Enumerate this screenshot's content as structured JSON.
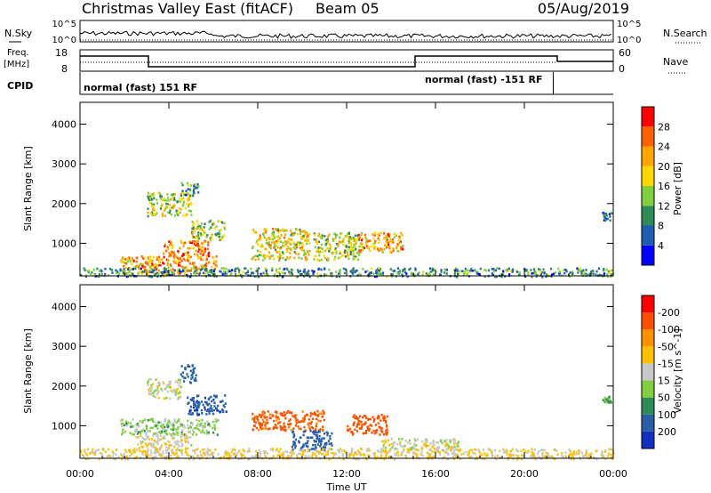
{
  "header": {
    "title": "Christmas Valley East (fitACF)",
    "beam": "Beam 05",
    "date": "05/Aug/2019"
  },
  "top_panels": {
    "nsky_label": "N.Sky",
    "nsearch_label": "N.Search",
    "count_ticks": [
      "10^5",
      "10^0"
    ],
    "freq_label_1": "Freq.",
    "freq_label_2": "[MHz]",
    "freq_ticks": [
      "18",
      "8"
    ],
    "nave_label": "Nave",
    "nave_ticks": [
      "60",
      "0"
    ],
    "cpid_label": "CPID",
    "cpid_segments": [
      {
        "label": "normal (fast) 151 RF",
        "start_h": 0,
        "end_h": 21.3
      },
      {
        "label": "normal (fast) -151 RF",
        "start_h": 21.3,
        "end_h": 24
      }
    ]
  },
  "axes": {
    "y_label": "Slant Range [km]",
    "y_ticks": [
      1000,
      2000,
      3000,
      4000
    ],
    "y_range": [
      180,
      4550
    ],
    "x_label": "Time UT",
    "x_ticks": [
      "00:00",
      "04:00",
      "08:00",
      "12:00",
      "16:00",
      "20:00",
      "00:00"
    ],
    "x_range_h": [
      0,
      24
    ]
  },
  "power_colorbar": {
    "label": "Power [dB]",
    "ticks": [
      "4",
      "8",
      "12",
      "16",
      "20",
      "24",
      "28"
    ],
    "colors": [
      "#0000ff",
      "#1e5fb4",
      "#2e8b57",
      "#7fcf3f",
      "#ffd700",
      "#ffa500",
      "#ff6000",
      "#ff0000"
    ]
  },
  "velocity_colorbar": {
    "label": "Velocity [m s^-1]",
    "ticks": [
      "200",
      "100",
      "50",
      "15",
      "-15",
      "-50",
      "-100",
      "-200"
    ],
    "colors": [
      "#1030c0",
      "#2a5fa8",
      "#2e8b57",
      "#7fcf3f",
      "#c8c8c8",
      "#ffc000",
      "#ff9000",
      "#ff5000",
      "#ff0000"
    ]
  },
  "chart_data": [
    {
      "type": "heatmap",
      "title": "",
      "xlabel": "Time UT",
      "ylabel": "Slant Range [km]",
      "zlabel": "Power [dB]",
      "xlim": [
        0,
        24
      ],
      "ylim": [
        180,
        4550
      ],
      "scatter_regions": [
        {
          "t": [
            1.8,
            6.2
          ],
          "r": [
            250,
            700
          ],
          "z": 22
        },
        {
          "t": [
            3.7,
            5.8
          ],
          "r": [
            700,
            1100
          ],
          "z": 24
        },
        {
          "t": [
            3.0,
            5.0
          ],
          "r": [
            1700,
            2300
          ],
          "z": 16
        },
        {
          "t": [
            4.5,
            5.3
          ],
          "r": [
            2200,
            2550
          ],
          "z": 10
        },
        {
          "t": [
            5.0,
            6.5
          ],
          "r": [
            1100,
            1600
          ],
          "z": 14
        },
        {
          "t": [
            7.7,
            10.3
          ],
          "r": [
            600,
            1400
          ],
          "z": 18
        },
        {
          "t": [
            10.5,
            12.7
          ],
          "r": [
            600,
            1300
          ],
          "z": 16
        },
        {
          "t": [
            12.5,
            14.5
          ],
          "r": [
            800,
            1300
          ],
          "z": 22
        },
        {
          "t": [
            0,
            24
          ],
          "r": [
            180,
            400
          ],
          "z": 10
        },
        {
          "t": [
            23.5,
            23.9
          ],
          "r": [
            1600,
            1800
          ],
          "z": 8
        }
      ]
    },
    {
      "type": "heatmap",
      "title": "",
      "xlabel": "Time UT",
      "ylabel": "Slant Range [km]",
      "zlabel": "Velocity [m s^-1]",
      "xlim": [
        0,
        24
      ],
      "ylim": [
        180,
        4550
      ],
      "scatter_regions": [
        {
          "t": [
            1.8,
            6.2
          ],
          "r": [
            800,
            1200
          ],
          "z": 30
        },
        {
          "t": [
            2.5,
            5.0
          ],
          "r": [
            400,
            800
          ],
          "z": -10
        },
        {
          "t": [
            3.0,
            4.5
          ],
          "r": [
            1700,
            2200
          ],
          "z": 0
        },
        {
          "t": [
            4.5,
            5.2
          ],
          "r": [
            2100,
            2550
          ],
          "z": 150
        },
        {
          "t": [
            4.8,
            6.6
          ],
          "r": [
            1300,
            1800
          ],
          "z": 180
        },
        {
          "t": [
            7.7,
            11.0
          ],
          "r": [
            900,
            1400
          ],
          "z": -120
        },
        {
          "t": [
            9.5,
            11.3
          ],
          "r": [
            400,
            900
          ],
          "z": 150
        },
        {
          "t": [
            12.0,
            13.8
          ],
          "r": [
            800,
            1300
          ],
          "z": -150
        },
        {
          "t": [
            13.5,
            17.0
          ],
          "r": [
            400,
            700
          ],
          "z": 0
        },
        {
          "t": [
            0,
            24
          ],
          "r": [
            180,
            450
          ],
          "z": -20
        },
        {
          "t": [
            23.5,
            23.9
          ],
          "r": [
            1600,
            1800
          ],
          "z": 60
        }
      ]
    }
  ]
}
